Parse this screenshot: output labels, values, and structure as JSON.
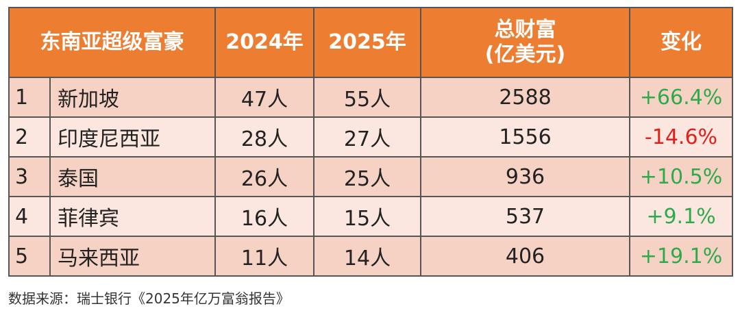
{
  "table": {
    "header": [
      "东南亚超级富豪",
      "2024年",
      "2025年",
      "总财富\n(亿美元)",
      "变化"
    ],
    "rows": [
      [
        "1",
        "新加坡",
        "47人",
        "55人",
        "2588",
        "+66.4%"
      ],
      [
        "2",
        "印度尼西亚",
        "28人",
        "27人",
        "1556",
        "-14.6%"
      ],
      [
        "3",
        "泰国",
        "26人",
        "25人",
        "936",
        "+10.5%"
      ],
      [
        "4",
        "菲律宾",
        "16人",
        "15人",
        "537",
        "+9.1%"
      ],
      [
        "5",
        "马来西亚",
        "11人",
        "14人",
        "406",
        "+19.1%"
      ]
    ]
  },
  "footer": {
    "source": "数据来源：瑞士银行《2025年亿万富翁报告》"
  }
}
